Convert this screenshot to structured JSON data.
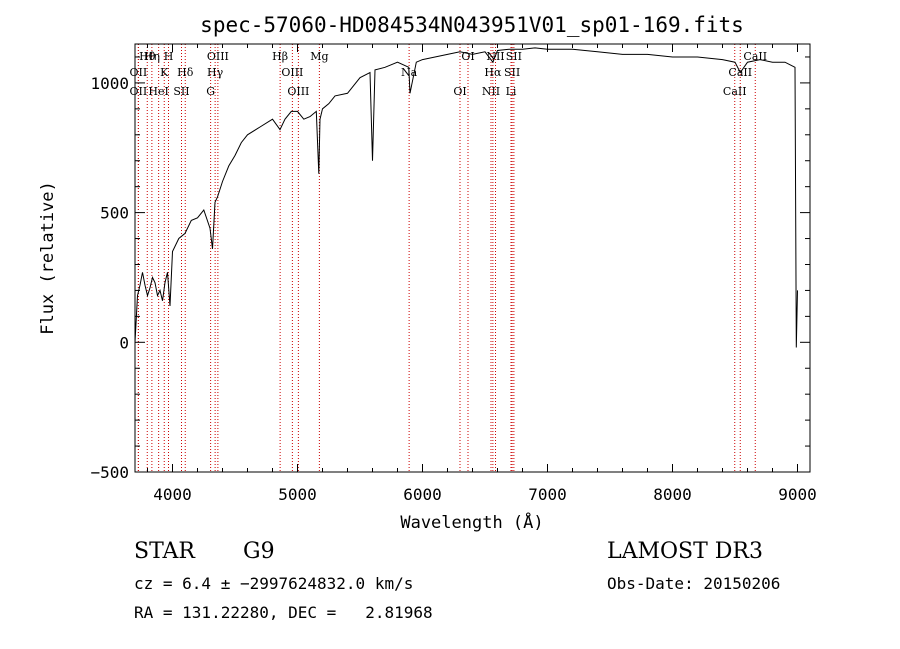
{
  "chart_data": {
    "type": "line",
    "title": "spec-57060-HD084534N043951V01_sp01-169.fits",
    "xlabel": "Wavelength (Å)",
    "ylabel": "Flux (relative)",
    "xlim": [
      3700,
      9100
    ],
    "ylim": [
      -500,
      1150
    ],
    "x_ticks": [
      4000,
      5000,
      6000,
      7000,
      8000,
      9000
    ],
    "x_tick_labels": [
      "4000",
      "5000",
      "6000",
      "7000",
      "8000",
      "9000"
    ],
    "y_ticks": [
      -500,
      0,
      500,
      1000
    ],
    "y_tick_labels": [
      "−500",
      "0",
      "500",
      "1000"
    ],
    "series": [
      {
        "name": "flux",
        "x": [
          3700,
          3720,
          3740,
          3760,
          3780,
          3800,
          3820,
          3840,
          3860,
          3880,
          3900,
          3920,
          3940,
          3960,
          3980,
          4000,
          4050,
          4100,
          4150,
          4200,
          4250,
          4300,
          4320,
          4340,
          4360,
          4400,
          4450,
          4500,
          4550,
          4600,
          4700,
          4800,
          4860,
          4900,
          4950,
          5000,
          5050,
          5100,
          5150,
          5170,
          5180,
          5200,
          5250,
          5300,
          5400,
          5500,
          5580,
          5600,
          5620,
          5700,
          5800,
          5890,
          5900,
          5950,
          6000,
          6100,
          6200,
          6300,
          6400,
          6500,
          6563,
          6600,
          6700,
          6800,
          6900,
          7000,
          7200,
          7400,
          7600,
          7800,
          8000,
          8200,
          8400,
          8500,
          8542,
          8600,
          8700,
          8800,
          8900,
          8980,
          8990,
          9000
        ],
        "y": [
          0,
          180,
          220,
          270,
          220,
          180,
          210,
          250,
          230,
          180,
          200,
          160,
          230,
          270,
          140,
          350,
          400,
          420,
          470,
          480,
          510,
          440,
          360,
          540,
          560,
          620,
          680,
          720,
          770,
          800,
          830,
          860,
          820,
          860,
          890,
          890,
          860,
          870,
          890,
          650,
          860,
          900,
          920,
          950,
          960,
          1020,
          1040,
          700,
          1050,
          1060,
          1080,
          1060,
          960,
          1080,
          1090,
          1100,
          1110,
          1120,
          1110,
          1120,
          1080,
          1125,
          1130,
          1130,
          1135,
          1130,
          1130,
          1120,
          1110,
          1110,
          1100,
          1100,
          1090,
          1080,
          1040,
          1080,
          1090,
          1080,
          1080,
          1060,
          -20,
          200
        ]
      }
    ],
    "line_labels": [
      {
        "name": "Hθ",
        "wave": 3798
      },
      {
        "name": "OII",
        "wave": 3727
      },
      {
        "name": "OII",
        "wave": 3727
      },
      {
        "name": "Hη",
        "wave": 3835
      },
      {
        "name": "K",
        "wave": 3934
      },
      {
        "name": "HeI",
        "wave": 3889
      },
      {
        "name": "H",
        "wave": 3968
      },
      {
        "name": "Hδ",
        "wave": 4102
      },
      {
        "name": "SII",
        "wave": 4072
      },
      {
        "name": "OIII",
        "wave": 4363
      },
      {
        "name": "Hγ",
        "wave": 4341
      },
      {
        "name": "G",
        "wave": 4305
      },
      {
        "name": "Hβ",
        "wave": 4861
      },
      {
        "name": "OIII",
        "wave": 4959
      },
      {
        "name": "OIII",
        "wave": 5007
      },
      {
        "name": "Mg",
        "wave": 5175
      },
      {
        "name": "Na",
        "wave": 5893
      },
      {
        "name": "OI",
        "wave": 6300
      },
      {
        "name": "OI",
        "wave": 6364
      },
      {
        "name": "Hα",
        "wave": 6563
      },
      {
        "name": "NII",
        "wave": 6548
      },
      {
        "name": "NII",
        "wave": 6584
      },
      {
        "name": "SII",
        "wave": 6717
      },
      {
        "name": "Li",
        "wave": 6708
      },
      {
        "name": "SII",
        "wave": 6731
      },
      {
        "name": "CaII",
        "wave": 8542
      },
      {
        "name": "CaII",
        "wave": 8498
      },
      {
        "name": "CaII",
        "wave": 8662
      }
    ]
  },
  "info": {
    "object_class": "STAR",
    "subclass": "G9",
    "survey": "LAMOST DR3",
    "cz": "cz = 6.4 ± −2997624832.0 km/s",
    "obs_date": "Obs-Date: 20150206",
    "radec": "RA = 131.22280, DEC =   2.81968"
  },
  "colors": {
    "line": "#000000",
    "marker": "#cc0000",
    "background": "#ffffff"
  }
}
